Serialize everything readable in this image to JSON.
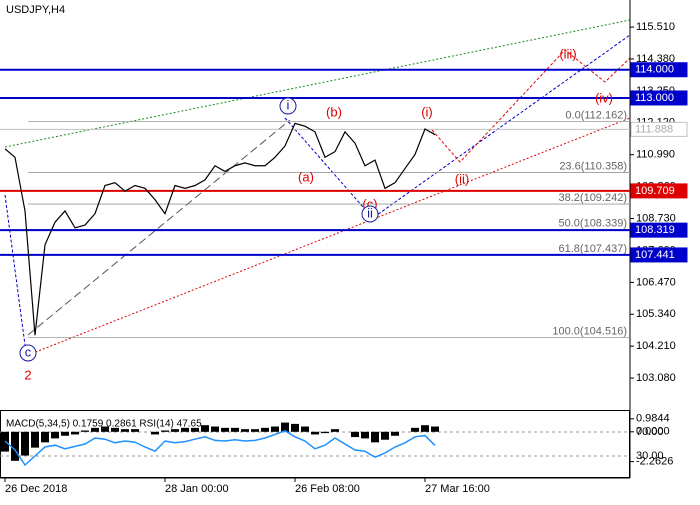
{
  "chart_data": {
    "type": "line",
    "title": "USDJPY,H4",
    "xlim": [
      -0.5,
      62.5
    ],
    "xticks": [
      {
        "value": 0,
        "label": "26 Dec 2018"
      },
      {
        "value": 16,
        "label": "28 Jan 00:00"
      },
      {
        "value": 29,
        "label": "26 Feb 08:00"
      },
      {
        "value": 42,
        "label": "27 Mar 16:00"
      }
    ],
    "ylim": [
      102.02,
      116.47
    ],
    "yticks": [
      {
        "value": 115.51,
        "label": "115.510"
      },
      {
        "value": 114.38,
        "label": "114.380"
      },
      {
        "value": 113.25,
        "label": "113.250"
      },
      {
        "value": 112.12,
        "label": "112.120"
      },
      {
        "value": 110.99,
        "label": "110.990"
      },
      {
        "value": 109.86,
        "label": "109.860"
      },
      {
        "value": 108.73,
        "label": "108.730"
      },
      {
        "value": 107.6,
        "label": "107.600"
      },
      {
        "value": 106.47,
        "label": "106.470"
      },
      {
        "value": 105.34,
        "label": "105.340"
      },
      {
        "value": 104.21,
        "label": "104.210"
      },
      {
        "value": 103.08,
        "label": "103.080"
      }
    ],
    "x": [
      0,
      1,
      2,
      3,
      4,
      5,
      6,
      7,
      8,
      9,
      10,
      11,
      12,
      13,
      14,
      15,
      16,
      17,
      18,
      19,
      20,
      21,
      22,
      23,
      24,
      25,
      26,
      27,
      28,
      29,
      30,
      31,
      32,
      33,
      34,
      35,
      36,
      37,
      38,
      39,
      40,
      41,
      42,
      43
    ],
    "series": [
      {
        "color": "#000000",
        "values": [
          111.2,
          110.9,
          109.0,
          104.6,
          107.8,
          108.6,
          109.0,
          108.4,
          108.5,
          108.9,
          109.9,
          110.0,
          109.7,
          109.9,
          109.8,
          109.4,
          108.9,
          109.9,
          109.8,
          109.9,
          110.1,
          110.6,
          110.4,
          110.6,
          110.7,
          110.6,
          110.6,
          110.9,
          111.3,
          112.1,
          112.0,
          111.8,
          110.9,
          111.1,
          111.8,
          111.4,
          110.6,
          110.8,
          109.8,
          110.0,
          110.5,
          111.0,
          111.9,
          111.7
        ]
      }
    ],
    "levels": [
      {
        "value": 114.0,
        "label": "114.000",
        "color": "#0000cc"
      },
      {
        "value": 113.0,
        "label": "113.000",
        "color": "#0000cc"
      },
      {
        "value": 111.888,
        "label": "111.888",
        "color": "#c0c0c0"
      },
      {
        "value": 109.709,
        "label": "109.709",
        "color": "#dd0000"
      },
      {
        "value": 108.319,
        "label": "108.319",
        "color": "#0000cc"
      },
      {
        "value": 107.441,
        "label": "107.441",
        "color": "#0000cc"
      }
    ],
    "fib": [
      {
        "value": 112.162,
        "label": "0.0(112.162)"
      },
      {
        "value": 110.358,
        "label": "23.6(110.358)"
      },
      {
        "value": 109.242,
        "label": "38.2(109.242)"
      },
      {
        "value": 108.339,
        "label": "50.0(108.339)"
      },
      {
        "value": 107.437,
        "label": "61.8(107.437)"
      },
      {
        "value": 104.516,
        "label": "100.0(104.516)"
      }
    ],
    "waves": [
      {
        "label": "i",
        "circled": true,
        "color": "#1a1aa6"
      },
      {
        "label": "(b)",
        "circled": false,
        "color": "#dd0000"
      },
      {
        "label": "(a)",
        "circled": false,
        "color": "#dd0000"
      },
      {
        "label": "(c)",
        "circled": false,
        "color": "#dd0000"
      },
      {
        "label": "ii",
        "circled": true,
        "color": "#1a1aa6"
      },
      {
        "label": "(i)",
        "circled": false,
        "color": "#dd0000"
      },
      {
        "label": "(ii)",
        "circled": false,
        "color": "#dd0000"
      },
      {
        "label": "(iii)",
        "circled": false,
        "color": "#dd0000"
      },
      {
        "label": "(iv)",
        "circled": false,
        "color": "#dd0000"
      },
      {
        "label": "c",
        "circled": true,
        "color": "#1a1aa6"
      },
      {
        "label": "2",
        "circled": false,
        "color": "#dd0000"
      }
    ],
    "indicator": {
      "label": "MACD(5,34,5) 0.1759 0.2861 RSI(14) 47.65",
      "macd_lim": [
        -3.2,
        1.35
      ],
      "macd_ticks": [
        {
          "value": 0.9844,
          "label": "0.9844"
        },
        {
          "value": 0,
          "label": "0.0000"
        },
        {
          "value": -2.2626,
          "label": "-2.2626"
        }
      ],
      "macd_values": [
        -1.5,
        -2.2,
        -1.8,
        -1.2,
        -0.8,
        -0.5,
        -0.3,
        -0.2,
        0.1,
        0.3,
        0.4,
        0.3,
        0.2,
        0.2,
        0.0,
        -0.2,
        0.1,
        0.2,
        0.3,
        0.3,
        0.5,
        0.4,
        0.3,
        0.3,
        0.2,
        0.2,
        0.3,
        0.4,
        0.7,
        0.6,
        0.4,
        -0.2,
        -0.1,
        0.2,
        0.0,
        -0.4,
        -0.5,
        -0.8,
        -0.6,
        -0.3,
        0.0,
        0.3,
        0.5,
        0.4
      ],
      "rsi_lim": [
        0,
        100
      ],
      "rsi_ticks": [
        {
          "value": 70,
          "label": "70.00"
        },
        {
          "value": 30,
          "label": "30.00"
        }
      ],
      "rsi_values": [
        55,
        40,
        15,
        30,
        45,
        48,
        42,
        46,
        50,
        60,
        58,
        52,
        55,
        53,
        45,
        38,
        55,
        52,
        54,
        58,
        62,
        56,
        55,
        57,
        55,
        56,
        60,
        66,
        72,
        62,
        55,
        42,
        48,
        60,
        50,
        40,
        38,
        28,
        35,
        45,
        52,
        62,
        64,
        47.65
      ],
      "rsi_color": "#1e90ff"
    }
  }
}
